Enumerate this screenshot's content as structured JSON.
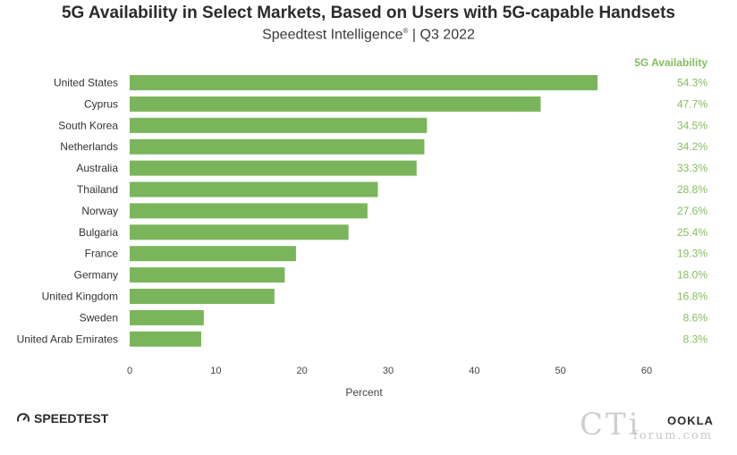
{
  "chart_data": {
    "type": "bar",
    "orientation": "horizontal",
    "title": "5G Availability in Select Markets, Based on Users with 5G-capable Handsets",
    "subtitle": "Speedtest Intelligence",
    "subtitle_mark": "®",
    "subtitle_suffix": "| Q3 2022",
    "xlabel": "Percent",
    "xlim": [
      0,
      60
    ],
    "xticks": [
      0,
      10,
      20,
      30,
      40,
      50,
      60
    ],
    "value_column_header": "5G Availability",
    "categories": [
      "United States",
      "Cyprus",
      "South Korea",
      "Netherlands",
      "Australia",
      "Thailand",
      "Norway",
      "Bulgaria",
      "France",
      "Germany",
      "United Kingdom",
      "Sweden",
      "United Arab Emirates"
    ],
    "values": [
      54.3,
      47.7,
      34.5,
      34.2,
      33.3,
      28.8,
      27.6,
      25.4,
      19.3,
      18.0,
      16.8,
      8.6,
      8.3
    ],
    "value_labels": [
      "54.3%",
      "47.7%",
      "34.5%",
      "34.2%",
      "33.3%",
      "28.8%",
      "27.6%",
      "25.4%",
      "19.3%",
      "18.0%",
      "16.8%",
      "8.6%",
      "8.3%"
    ],
    "bar_color": "#7ab55c",
    "label_color": "#86bd5e"
  },
  "branding": {
    "speedtest": "SPEEDTEST",
    "ookla": "OOKLA",
    "watermark_big": "CTi",
    "watermark_small": "forum.com"
  }
}
